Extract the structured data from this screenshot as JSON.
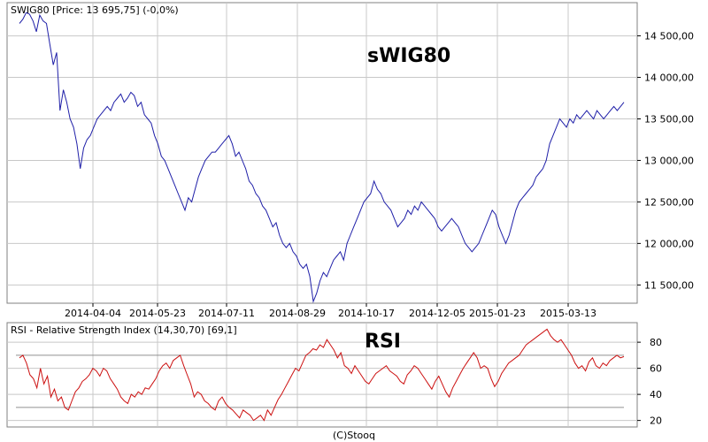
{
  "chart_data": [
    {
      "type": "line",
      "header": "SWIG80 [Price: 13 695,75] (-0,0%)",
      "title": "sWIG80",
      "ylim": [
        11280,
        14900
      ],
      "y_ticks": [
        "14 500,00",
        "14 000,00",
        "13 500,00",
        "13 000,00",
        "12 500,00",
        "12 000,00",
        "11 500,00"
      ],
      "x_ticks": [
        "2014-04-04",
        "2014-05-23",
        "2014-07-11",
        "2014-08-29",
        "2014-10-17",
        "2014-12-05",
        "2015-01-23",
        "2015-03-13"
      ],
      "grid": true,
      "colors": {
        "line": "#1f1fa8",
        "grid": "#c8c8c8",
        "frame": "#808080"
      },
      "series": [
        {
          "values": [
            14650,
            14700,
            14780,
            14760,
            14680,
            14550,
            14750,
            14680,
            14650,
            14400,
            14150,
            14300,
            13600,
            13850,
            13700,
            13500,
            13400,
            13200,
            12900,
            13150,
            13250,
            13300,
            13400,
            13500,
            13550,
            13600,
            13650,
            13600,
            13700,
            13750,
            13800,
            13700,
            13750,
            13820,
            13780,
            13650,
            13700,
            13550,
            13500,
            13450,
            13300,
            13200,
            13050,
            13000,
            12900,
            12800,
            12700,
            12600,
            12500,
            12400,
            12550,
            12500,
            12650,
            12800,
            12900,
            13000,
            13050,
            13100,
            13100,
            13150,
            13200,
            13250,
            13300,
            13200,
            13050,
            13100,
            13000,
            12900,
            12750,
            12700,
            12600,
            12550,
            12450,
            12400,
            12300,
            12200,
            12250,
            12100,
            12000,
            11950,
            12000,
            11900,
            11850,
            11750,
            11700,
            11750,
            11600,
            11300,
            11400,
            11550,
            11650,
            11600,
            11700,
            11800,
            11850,
            11900,
            11800,
            12000,
            12100,
            12200,
            12300,
            12400,
            12500,
            12550,
            12600,
            12750,
            12650,
            12600,
            12500,
            12450,
            12400,
            12300,
            12200,
            12250,
            12300,
            12400,
            12350,
            12450,
            12400,
            12500,
            12450,
            12400,
            12350,
            12300,
            12200,
            12150,
            12200,
            12250,
            12300,
            12250,
            12200,
            12100,
            12000,
            11950,
            11900,
            11950,
            12000,
            12100,
            12200,
            12300,
            12400,
            12350,
            12200,
            12100,
            12000,
            12100,
            12250,
            12400,
            12500,
            12550,
            12600,
            12650,
            12700,
            12800,
            12850,
            12900,
            13000,
            13200,
            13300,
            13400,
            13500,
            13450,
            13400,
            13500,
            13450,
            13550,
            13500,
            13550,
            13600,
            13550,
            13500,
            13600,
            13550,
            13500,
            13550,
            13600,
            13650,
            13600,
            13650,
            13700
          ]
        }
      ]
    },
    {
      "type": "line",
      "header": "RSI - Relative Strength Index (14,30,70) [69,1]",
      "title": "RSI",
      "ylim": [
        15,
        95
      ],
      "y_ticks": [
        "80",
        "60",
        "40",
        "20"
      ],
      "levels": [
        30,
        70
      ],
      "grid": true,
      "colors": {
        "line": "#cc1010",
        "level": "#909090",
        "grid": "#c8c8c8",
        "frame": "#808080"
      },
      "series": [
        {
          "values": [
            68,
            70,
            64,
            55,
            52,
            45,
            60,
            48,
            54,
            38,
            44,
            35,
            38,
            30,
            28,
            35,
            42,
            45,
            50,
            52,
            55,
            60,
            58,
            54,
            60,
            58,
            52,
            48,
            44,
            38,
            35,
            33,
            40,
            38,
            42,
            40,
            45,
            44,
            48,
            52,
            58,
            62,
            64,
            60,
            66,
            68,
            70,
            62,
            55,
            48,
            38,
            42,
            40,
            35,
            33,
            30,
            28,
            35,
            38,
            33,
            30,
            28,
            25,
            22,
            28,
            26,
            24,
            20,
            22,
            24,
            20,
            28,
            24,
            30,
            36,
            40,
            45,
            50,
            55,
            60,
            58,
            64,
            70,
            72,
            75,
            74,
            78,
            76,
            82,
            78,
            74,
            68,
            72,
            62,
            60,
            56,
            62,
            58,
            54,
            50,
            48,
            52,
            56,
            58,
            60,
            62,
            58,
            56,
            54,
            50,
            48,
            55,
            58,
            62,
            60,
            56,
            52,
            48,
            44,
            50,
            54,
            48,
            42,
            38,
            45,
            50,
            55,
            60,
            64,
            68,
            72,
            68,
            60,
            62,
            60,
            52,
            46,
            50,
            56,
            60,
            64,
            66,
            68,
            70,
            74,
            78,
            80,
            82,
            84,
            86,
            88,
            90,
            85,
            82,
            80,
            82,
            78,
            74,
            70,
            64,
            60,
            62,
            58,
            65,
            68,
            62,
            60,
            64,
            62,
            66,
            68,
            70,
            68,
            69
          ]
        }
      ]
    }
  ],
  "footer": "(C)Stooq"
}
